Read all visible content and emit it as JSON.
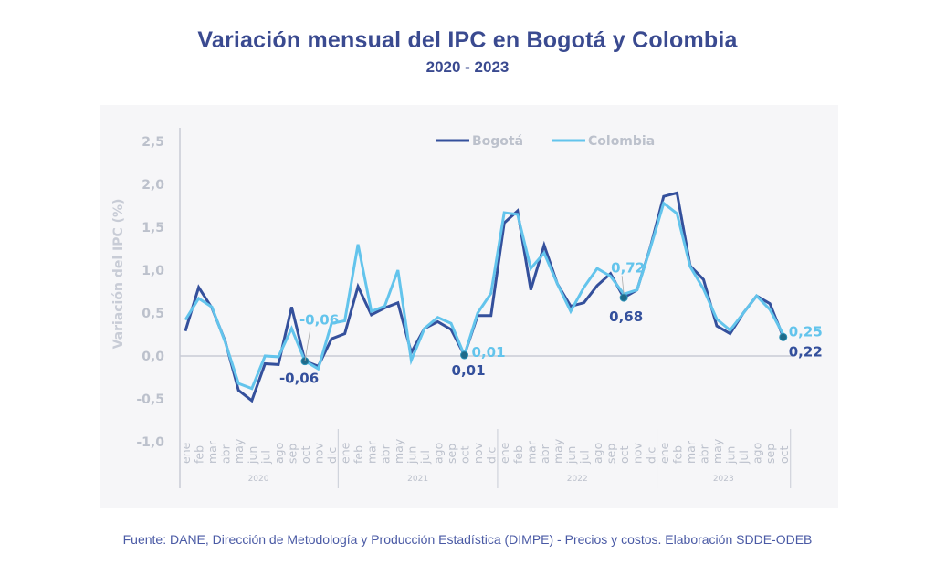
{
  "colors": {
    "bogota": "#34509c",
    "colombia": "#63c4ec",
    "axis_text": "#bcc1cc",
    "title": "#3a4a90"
  },
  "source": "Fuente: DANE, Dirección de Metodología y Producción Estadística (DIMPE) - Precios y costos. Elaboración SDDE-ODEB",
  "chart_data": {
    "type": "line",
    "title": "Variación mensual del IPC en Bogotá y Colombia",
    "subtitle": "2020 - 2023",
    "xlabel": "",
    "ylabel": "Variación del IPC (%)",
    "ylim": [
      -1.0,
      2.5
    ],
    "yticks": [
      2.5,
      2.0,
      1.5,
      1.0,
      0.5,
      0.0,
      -0.5,
      -1.0
    ],
    "ytick_labels": [
      "2,5",
      "2,0",
      "1,5",
      "1,0",
      "0,5",
      "0,0",
      "-0,5",
      "-1,0"
    ],
    "grid": false,
    "legend_position": "top-center",
    "years": [
      {
        "label": "2020",
        "months": 12
      },
      {
        "label": "2021",
        "months": 12
      },
      {
        "label": "2022",
        "months": 12
      },
      {
        "label": "2023",
        "months": 10
      }
    ],
    "categories": [
      "ene",
      "feb",
      "mar",
      "abr",
      "may",
      "jun",
      "jul",
      "ago",
      "sep",
      "oct",
      "nov",
      "dic",
      "ene",
      "feb",
      "mar",
      "abr",
      "may",
      "jun",
      "jul",
      "ago",
      "sep",
      "oct",
      "nov",
      "dic",
      "ene",
      "feb",
      "mar",
      "abr",
      "may",
      "jun",
      "jul",
      "ago",
      "sep",
      "oct",
      "nov",
      "dic",
      "ene",
      "feb",
      "mar",
      "abr",
      "may",
      "jun",
      "jul",
      "ago",
      "sep",
      "oct"
    ],
    "series": [
      {
        "name": "Bogotá",
        "values": [
          0.29,
          0.8,
          0.56,
          0.17,
          -0.4,
          -0.52,
          -0.09,
          -0.1,
          0.57,
          -0.06,
          -0.12,
          0.2,
          0.26,
          0.81,
          0.48,
          0.56,
          0.62,
          0.04,
          0.32,
          0.4,
          0.31,
          0.01,
          0.47,
          0.47,
          1.55,
          1.69,
          0.77,
          1.29,
          0.84,
          0.58,
          0.62,
          0.82,
          0.96,
          0.68,
          0.77,
          1.27,
          1.86,
          1.9,
          1.05,
          0.89,
          0.35,
          0.26,
          0.5,
          0.7,
          0.61,
          0.22
        ]
      },
      {
        "name": "Colombia",
        "values": [
          0.42,
          0.67,
          0.57,
          0.16,
          -0.32,
          -0.38,
          0.0,
          -0.01,
          0.32,
          -0.06,
          -0.15,
          0.38,
          0.41,
          1.3,
          0.52,
          0.58,
          1.0,
          -0.05,
          0.32,
          0.45,
          0.38,
          0.01,
          0.5,
          0.73,
          1.67,
          1.65,
          1.02,
          1.2,
          0.84,
          0.52,
          0.8,
          1.02,
          0.93,
          0.72,
          0.77,
          1.26,
          1.78,
          1.66,
          1.04,
          0.78,
          0.43,
          0.3,
          0.5,
          0.7,
          0.54,
          0.25
        ]
      }
    ],
    "annotations": [
      {
        "series": "Bogotá",
        "index": 9,
        "text": "-0,06"
      },
      {
        "series": "Colombia",
        "index": 9,
        "text": "-0,06"
      },
      {
        "series": "Bogotá",
        "index": 21,
        "text": "0,01"
      },
      {
        "series": "Colombia",
        "index": 21,
        "text": "0,01"
      },
      {
        "series": "Bogotá",
        "index": 33,
        "text": "0,68"
      },
      {
        "series": "Colombia",
        "index": 33,
        "text": "0,72"
      },
      {
        "series": "Bogotá",
        "index": 45,
        "text": "0,22"
      },
      {
        "series": "Colombia",
        "index": 45,
        "text": "0,25"
      }
    ]
  }
}
